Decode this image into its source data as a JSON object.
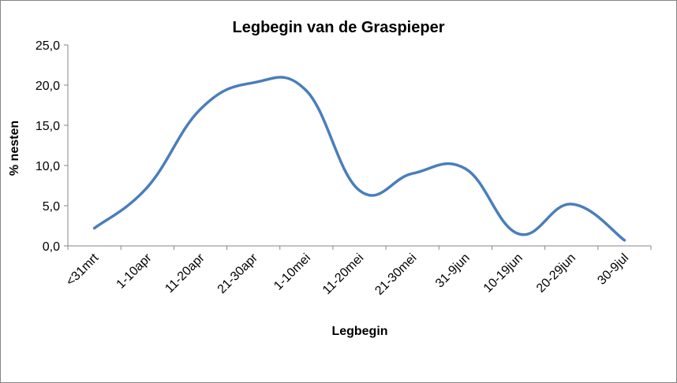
{
  "chart_data": {
    "type": "line",
    "title": "Legbegin van de Graspieper",
    "xlabel": "Legbegin",
    "ylabel": "% nesten",
    "categories": [
      "<31mrt",
      "1-10apr",
      "11-20apr",
      "21-30apr",
      "1-10mei",
      "11-20mei",
      "21-30mei",
      "31-9jun",
      "10-19jun",
      "20-29jun",
      "30-9jul"
    ],
    "series": [
      {
        "values": [
          2.2,
          7.3,
          17.0,
          20.3,
          19.3,
          6.9,
          9.0,
          9.6,
          1.5,
          5.2,
          0.7
        ]
      }
    ],
    "ylim": [
      0,
      25
    ],
    "yticks": [
      "0,0",
      "5,0",
      "10,0",
      "15,0",
      "20,0",
      "25,0"
    ],
    "line_color": "#4a7ebb",
    "grid": false,
    "legend": "none"
  }
}
